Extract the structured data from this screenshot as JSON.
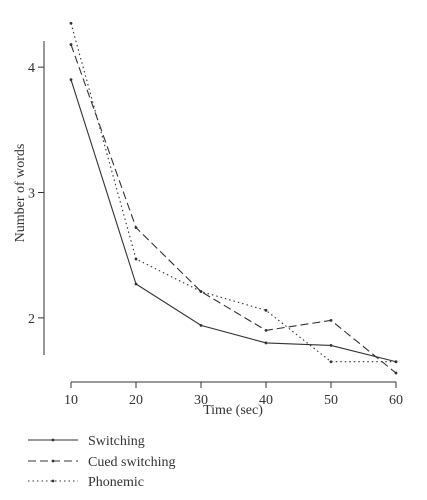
{
  "chart_data": {
    "type": "line",
    "title": "",
    "xlabel": "Time (sec)",
    "ylabel": "Number of words",
    "x": [
      10,
      20,
      30,
      40,
      50,
      60
    ],
    "xlim": [
      10,
      60
    ],
    "ylim": [
      1.6,
      4.4
    ],
    "xticks": [
      10,
      20,
      30,
      40,
      50,
      60
    ],
    "yticks": [
      2,
      3,
      4
    ],
    "grid": false,
    "legend": "bottom-left",
    "series": [
      {
        "name": "Switching",
        "dash": "solid",
        "values": [
          3.9,
          2.27,
          1.94,
          1.8,
          1.78,
          1.65
        ]
      },
      {
        "name": "Cued switching",
        "dash": "dashed",
        "values": [
          4.18,
          2.72,
          2.21,
          1.9,
          1.98,
          1.56
        ]
      },
      {
        "name": "Phonemic",
        "dash": "dotted",
        "values": [
          4.35,
          2.47,
          2.21,
          2.06,
          1.65,
          1.65
        ]
      }
    ]
  }
}
